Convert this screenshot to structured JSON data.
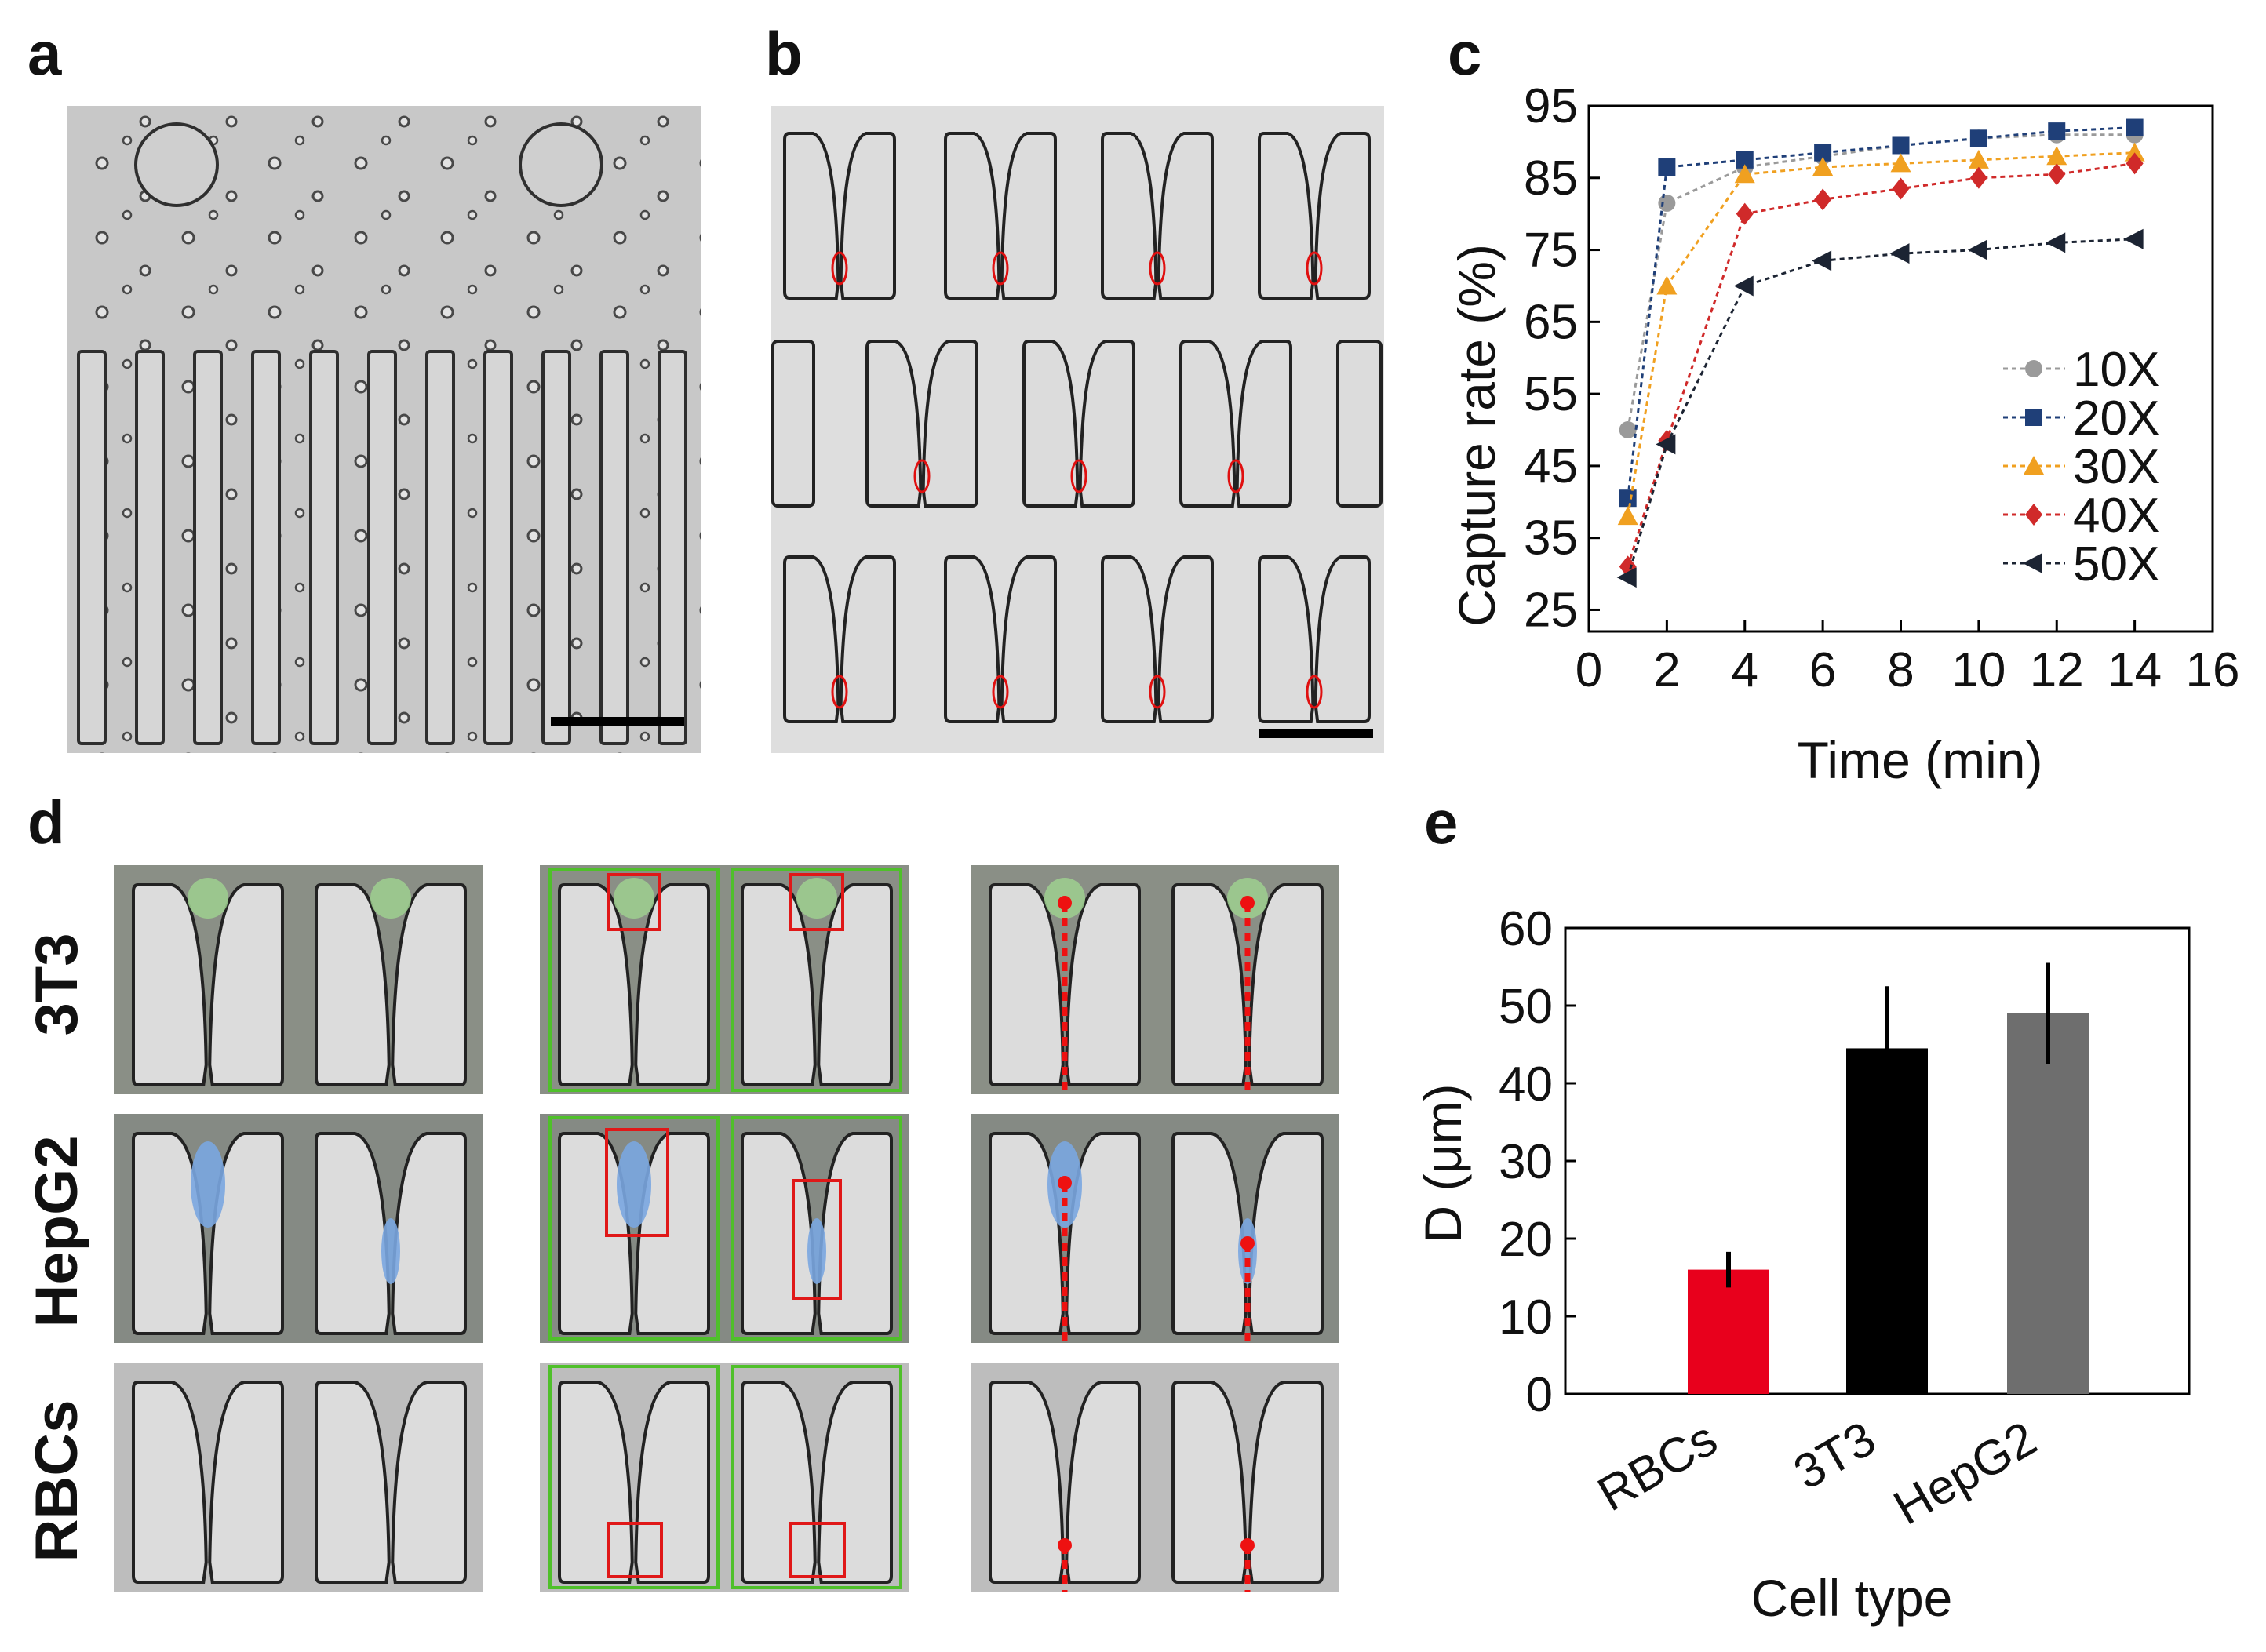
{
  "panel_letters": [
    "a",
    "b",
    "c",
    "d",
    "e"
  ],
  "row_labels": [
    "3T3",
    "HepG2",
    "RBCs"
  ],
  "colors": {
    "s10": "#9a9a9a",
    "s20": "#1f3f78",
    "s30": "#f0a020",
    "s40": "#d02a2a",
    "s50": "#1c2433",
    "bar_rbcs": "#e8001c",
    "bar_3t3": "#000000",
    "bar_hepg2": "#6e6e6e"
  },
  "chart_data": [
    {
      "type": "line",
      "panel": "c",
      "title": "",
      "xlabel": "Time (min)",
      "ylabel": "Capture rate (%)",
      "xlim": [
        0,
        16
      ],
      "ylim": [
        22,
        95
      ],
      "xticks": [
        "0",
        "2",
        "4",
        "6",
        "8",
        "10",
        "12",
        "14",
        "16"
      ],
      "yticks": [
        "25",
        "35",
        "45",
        "55",
        "65",
        "75",
        "85",
        "95"
      ],
      "legend_position": "right",
      "x": [
        1,
        2,
        4,
        6,
        8,
        10,
        12,
        14
      ],
      "series": [
        {
          "name": "10X",
          "marker": "circle",
          "values": [
            50,
            81.5,
            86.5,
            88,
            89.5,
            90.5,
            91,
            91
          ]
        },
        {
          "name": "20X",
          "marker": "square",
          "values": [
            40.5,
            86.5,
            87.5,
            88.5,
            89.5,
            90.5,
            91.5,
            92
          ]
        },
        {
          "name": "30X",
          "marker": "triangle-up",
          "values": [
            38,
            70,
            85.5,
            86.5,
            87,
            87.5,
            88,
            88.5
          ]
        },
        {
          "name": "40X",
          "marker": "diamond",
          "values": [
            31,
            48.5,
            80,
            82,
            83.5,
            85,
            85.5,
            87
          ]
        },
        {
          "name": "50X",
          "marker": "triangle-left",
          "values": [
            29.5,
            48,
            70,
            73.5,
            74.5,
            75,
            76,
            76.5
          ]
        }
      ]
    },
    {
      "type": "bar",
      "panel": "e",
      "title": "",
      "xlabel": "Cell type",
      "ylabel": "D (μm)",
      "ylim": [
        0,
        60
      ],
      "yticks": [
        "0",
        "10",
        "20",
        "30",
        "40",
        "50",
        "60"
      ],
      "categories": [
        "RBCs",
        "3T3",
        "HepG2"
      ],
      "values": [
        16,
        44.5,
        49
      ],
      "errors": [
        2.3,
        8,
        6.5
      ]
    }
  ]
}
